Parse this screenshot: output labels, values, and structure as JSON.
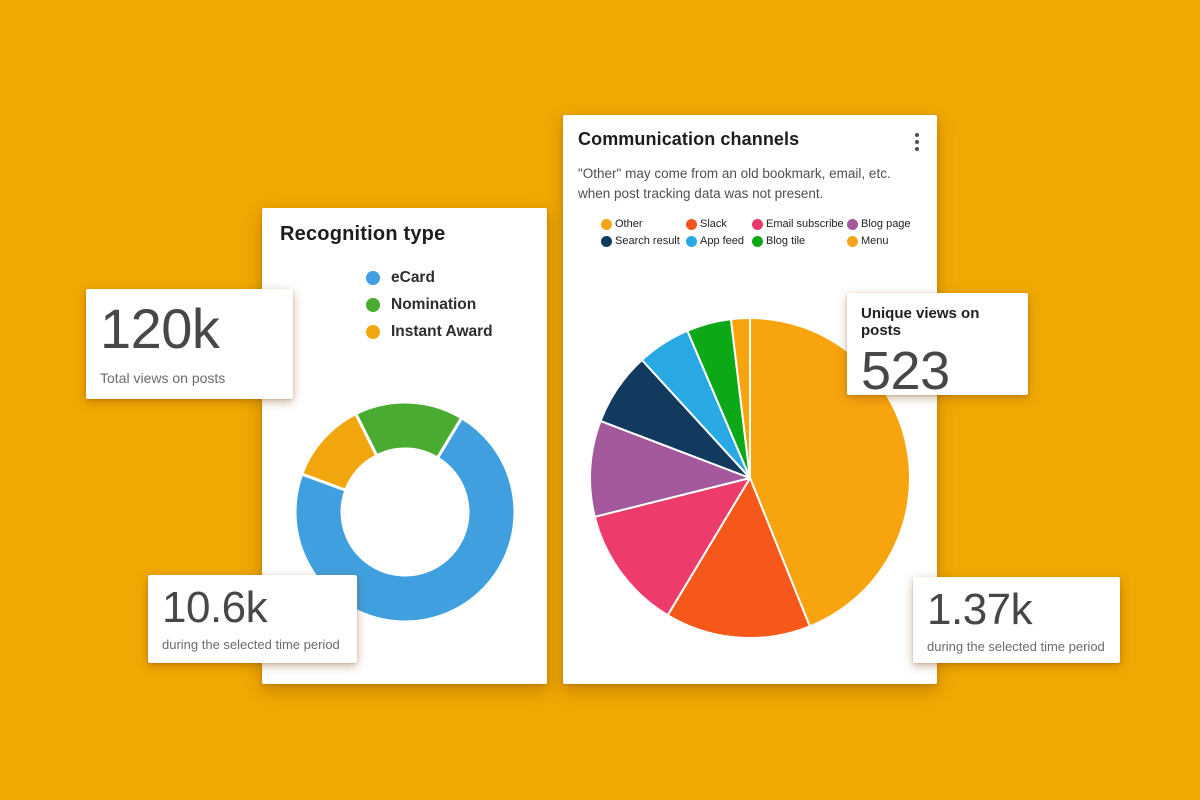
{
  "background_color": "#F0A802",
  "recognition_card": {
    "title": "Recognition type",
    "legend": [
      {
        "label": "eCard",
        "color": "#3F9FDF"
      },
      {
        "label": "Nomination",
        "color": "#49AC30"
      },
      {
        "label": "Instant Award",
        "color": "#F2A60D"
      }
    ]
  },
  "communication_card": {
    "title": "Communication channels",
    "menu_icon": "kebab-menu",
    "subtitle": "\"Other\" may come from an old bookmark, email, etc. when post tracking data was not present.",
    "legend": [
      {
        "label": "Other",
        "color": "#F6A41E"
      },
      {
        "label": "Slack",
        "color": "#F4541D"
      },
      {
        "label": "Email subscribe",
        "color": "#E9396B"
      },
      {
        "label": "Blog page",
        "color": "#A4599D"
      },
      {
        "label": "Search result",
        "color": "#12395E"
      },
      {
        "label": "App feed",
        "color": "#28A9E3"
      },
      {
        "label": "Blog tile",
        "color": "#0CA818"
      },
      {
        "label": "Menu",
        "color": "#F6A41E"
      }
    ]
  },
  "stats": {
    "total": {
      "value": "120k",
      "label": "Total views on posts"
    },
    "total_period": {
      "value": "10.6k",
      "label": "during the selected time period"
    },
    "unique": {
      "title": "Unique views on posts",
      "value": "523"
    },
    "unique_period": {
      "value": "1.37k",
      "label": "during the selected time period"
    }
  },
  "chart_data": [
    {
      "type": "pie",
      "variant": "donut",
      "title": "Recognition type",
      "units": "percent_of_total",
      "start_angle_deg": 31,
      "legend_position": "top-center-vertical",
      "slices": [
        {
          "label": "eCard",
          "value": 72,
          "color": "#3F9FDF"
        },
        {
          "label": "Instant Award",
          "value": 12,
          "color": "#F2A60D"
        },
        {
          "label": "Nomination",
          "value": 16,
          "color": "#49AC30"
        }
      ]
    },
    {
      "type": "pie",
      "variant": "pie",
      "title": "Communication channels",
      "units": "percent_of_total",
      "start_angle_deg": 0,
      "legend_position": "top",
      "related_total_unique_views": "523",
      "slices": [
        {
          "label": "Other",
          "value": 43.9,
          "color": "#F7A40F"
        },
        {
          "label": "Slack",
          "value": 14.7,
          "color": "#F6571A"
        },
        {
          "label": "Email subscribe",
          "value": 12.5,
          "color": "#ED3C6C"
        },
        {
          "label": "Blog page",
          "value": 9.7,
          "color": "#A4599D"
        },
        {
          "label": "Search result",
          "value": 7.4,
          "color": "#12395E"
        },
        {
          "label": "App feed",
          "value": 5.4,
          "color": "#28A9E3"
        },
        {
          "label": "Blog tile",
          "value": 4.5,
          "color": "#0CA818"
        },
        {
          "label": "Menu",
          "value": 1.9,
          "color": "#F7A40F"
        }
      ]
    }
  ]
}
